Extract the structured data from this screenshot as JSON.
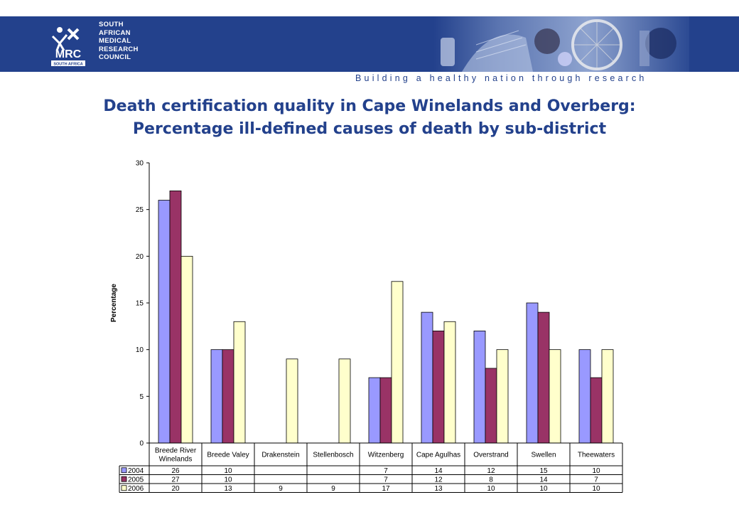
{
  "header": {
    "org_lines": [
      "SOUTH",
      "AFRICAN",
      "MEDICAL",
      "RESEARCH",
      "COUNCIL"
    ],
    "logo_text": "MRC",
    "logo_subtext": "SOUTH AFRICA",
    "tagline": "Building a healthy nation through research",
    "banner_color": "#23418c"
  },
  "title_lines": [
    "Death certification quality in Cape Winelands and Overberg:",
    "Percentage ill-defined causes of death by sub-district"
  ],
  "chart_data": {
    "type": "bar",
    "title": "Death certification quality in Cape Winelands and Overberg: Percentage ill-defined causes of death by sub-district",
    "ylabel": "Percentage",
    "xlabel": "",
    "ylim": [
      0,
      30
    ],
    "yticks": [
      0,
      5,
      10,
      15,
      20,
      25,
      30
    ],
    "grid": false,
    "legend": "data-table",
    "categories": [
      [
        "Breede River",
        "Winelands"
      ],
      [
        "Breede Valey"
      ],
      [
        "Drakenstein"
      ],
      [
        "Stellenbosch"
      ],
      [
        "Witzenberg"
      ],
      [
        "Cape Agulhas"
      ],
      [
        "Overstrand"
      ],
      [
        "Swellen"
      ],
      [
        "Theewaters"
      ]
    ],
    "series": [
      {
        "name": "2004",
        "color": "#9999ff",
        "values": [
          26,
          10,
          null,
          null,
          7,
          14,
          12,
          15,
          10
        ],
        "labels": [
          "26",
          "10",
          "",
          "",
          "7",
          "14",
          "12",
          "15",
          "10"
        ]
      },
      {
        "name": "2005",
        "color": "#993366",
        "values": [
          27,
          10,
          null,
          null,
          7,
          12,
          8,
          14,
          7
        ],
        "labels": [
          "27",
          "10",
          "",
          "",
          "7",
          "12",
          "8",
          "14",
          "7"
        ]
      },
      {
        "name": "2006",
        "color": "#ffffcc",
        "values": [
          20,
          13,
          9,
          9,
          17.3,
          13,
          10,
          10,
          10
        ],
        "labels": [
          "20",
          "13",
          "9",
          "9",
          "17",
          "13",
          "10",
          "10",
          "10"
        ]
      }
    ]
  }
}
